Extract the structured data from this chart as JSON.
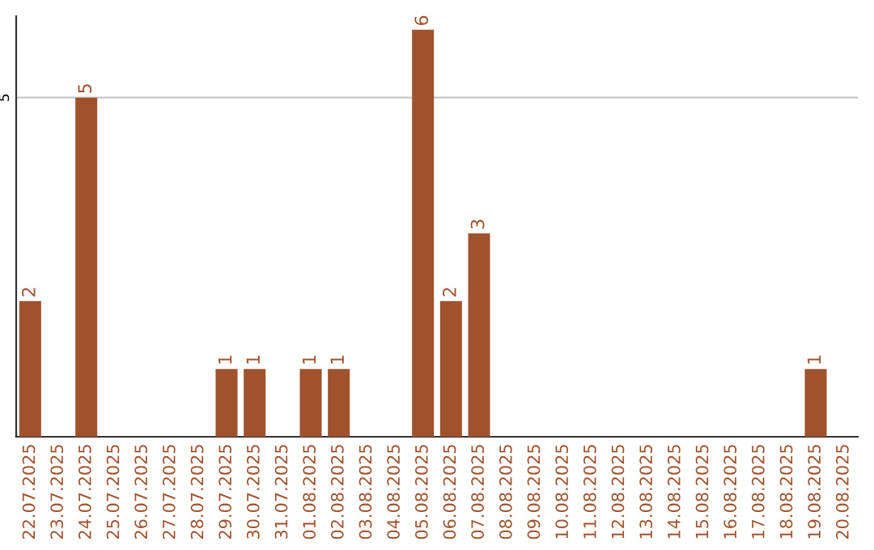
{
  "chart_data": {
    "type": "bar",
    "categories": [
      "22.07.2025",
      "23.07.2025",
      "24.07.2025",
      "25.07.2025",
      "26.07.2025",
      "27.07.2025",
      "28.07.2025",
      "29.07.2025",
      "30.07.2025",
      "31.07.2025",
      "01.08.2025",
      "02.08.2025",
      "03.08.2025",
      "04.08.2025",
      "05.08.2025",
      "06.08.2025",
      "07.08.2025",
      "08.08.2025",
      "09.08.2025",
      "10.08.2025",
      "11.08.2025",
      "12.08.2025",
      "13.08.2025",
      "14.08.2025",
      "15.08.2025",
      "16.08.2025",
      "17.08.2025",
      "18.08.2025",
      "19.08.2025",
      "20.08.2025"
    ],
    "values": [
      2,
      0,
      5,
      0,
      0,
      0,
      0,
      1,
      1,
      0,
      1,
      1,
      0,
      0,
      6,
      2,
      3,
      0,
      0,
      0,
      0,
      0,
      0,
      0,
      0,
      0,
      0,
      0,
      1,
      0
    ],
    "color": "#a0522d",
    "ylim": [
      0,
      6.2
    ],
    "yticks": [
      5
    ],
    "grid": "y",
    "value_labels": [
      "2",
      null,
      "5",
      null,
      null,
      null,
      null,
      "1",
      "1",
      null,
      "1",
      "1",
      null,
      null,
      "6",
      "2",
      "3",
      null,
      null,
      null,
      null,
      null,
      null,
      null,
      null,
      null,
      null,
      null,
      "1",
      null
    ]
  }
}
